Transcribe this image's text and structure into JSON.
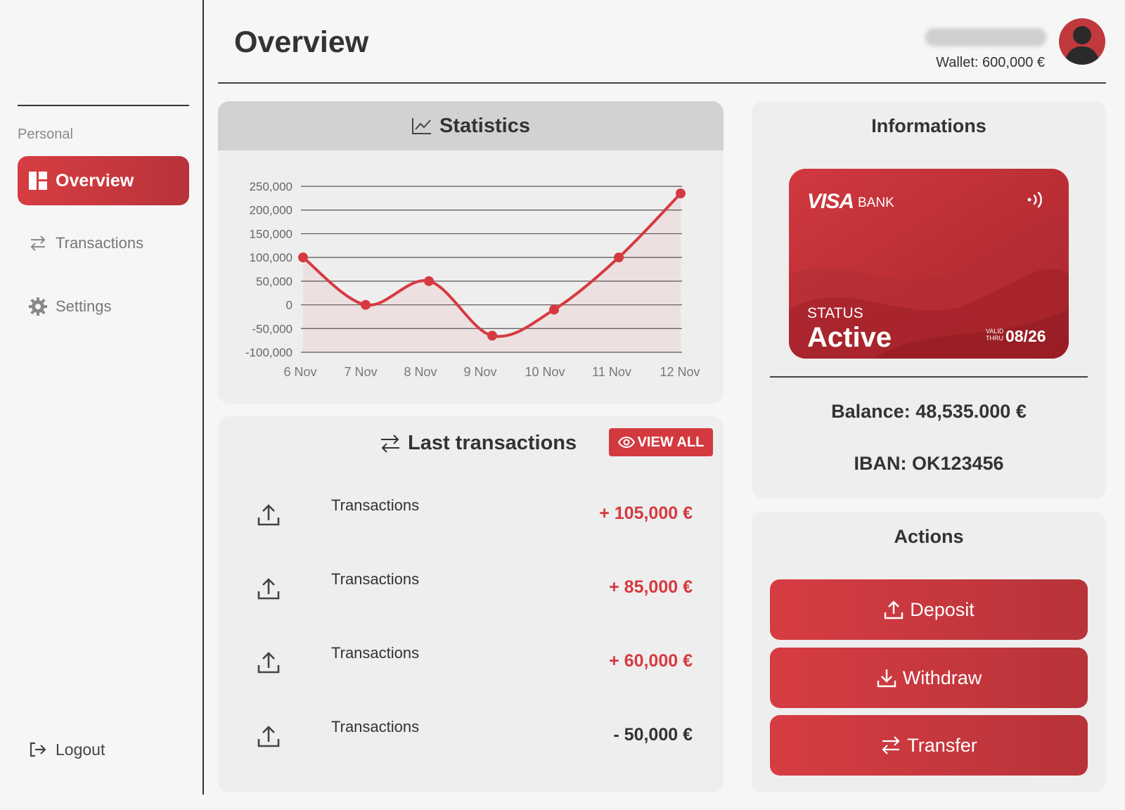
{
  "sidebar": {
    "section_label": "Personal",
    "items": [
      {
        "label": "Overview",
        "icon": "dashboard-icon",
        "active": true
      },
      {
        "label": "Transactions",
        "icon": "swap-icon",
        "active": false
      },
      {
        "label": "Settings",
        "icon": "gear-icon",
        "active": false
      }
    ],
    "logout_label": "Logout"
  },
  "header": {
    "title": "Overview",
    "wallet": "Wallet: 600,000 €"
  },
  "statistics": {
    "title": "Statistics"
  },
  "chart_data": {
    "type": "line",
    "x": [
      "6 Nov",
      "7 Nov",
      "8 Nov",
      "9 Nov",
      "10 Nov",
      "11 Nov",
      "12 Nov"
    ],
    "values": [
      100000,
      0,
      50000,
      -65000,
      -10000,
      100000,
      235000
    ],
    "y_ticks": [
      "250,000",
      "200,000",
      "150,000",
      "100,000",
      "50,000",
      "0",
      "-50,000",
      "-100,000"
    ],
    "ylim": [
      -100000,
      250000
    ],
    "grid": true,
    "line_color": "#d63a40"
  },
  "transactions": {
    "title": "Last transactions",
    "view_all": "VIEW ALL",
    "rows": [
      {
        "label": "Transactions",
        "amount": "+ 105,000 €",
        "positive": true
      },
      {
        "label": "Transactions",
        "amount": "+ 85,000 €",
        "positive": true
      },
      {
        "label": "Transactions",
        "amount": "+ 60,000 €",
        "positive": true
      },
      {
        "label": "Transactions",
        "amount": "- 50,000 €",
        "positive": false
      }
    ]
  },
  "info": {
    "title": "Informations",
    "card": {
      "brand": "VISA",
      "bank": "BANK",
      "status_label": "STATUS",
      "status": "Active",
      "valid_thru": "VALID THRU",
      "expiry": "08/26"
    },
    "balance": "Balance: 48,535.000 €",
    "iban": "IBAN: OK123456"
  },
  "actions": {
    "title": "Actions",
    "deposit": "Deposit",
    "withdraw": "Withdraw",
    "transfer": "Transfer"
  },
  "colors": {
    "accent": "#d63d42",
    "accent_dark": "#b8333a"
  }
}
